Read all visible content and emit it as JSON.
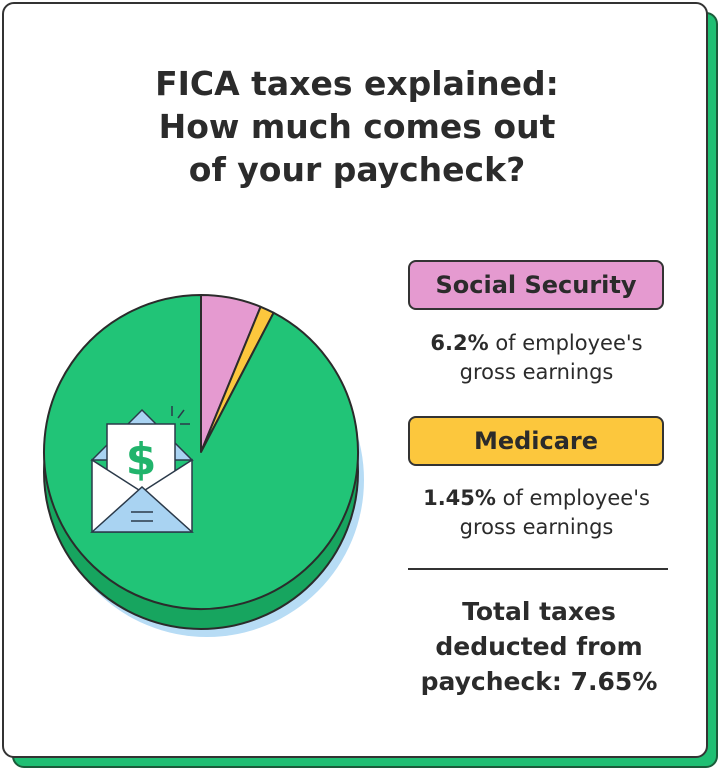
{
  "title_lines": [
    "FICA taxes explained:",
    "How much comes out",
    "of your paycheck?"
  ],
  "colors": {
    "social_security": "#e59ad0",
    "medicare": "#fcc73d",
    "remainder": "#21c477",
    "pie_side": "#17a55f",
    "shadow": "#b7dcf5",
    "outline": "#2b2b2b"
  },
  "chart_data": {
    "type": "pie",
    "slices": [
      {
        "name": "Social Security",
        "value": 6.2,
        "color": "#e59ad0"
      },
      {
        "name": "Medicare",
        "value": 1.45,
        "color": "#fcc73d"
      },
      {
        "value": 92.35,
        "color": "#21c477"
      }
    ]
  },
  "legend": [
    {
      "label": "Social Security",
      "percent": "6.2%",
      "text": "of employee's",
      "text2": "gross earnings",
      "color": "#e59ad0"
    },
    {
      "label": "Medicare",
      "percent": "1.45%",
      "text": "of employee's",
      "text2": "gross earnings",
      "color": "#fcc73d"
    }
  ],
  "total": {
    "line1": "Total taxes",
    "line2": "deducted from",
    "line3": "paycheck: 7.65%"
  },
  "icon": "paycheck-envelope-dollar-icon"
}
